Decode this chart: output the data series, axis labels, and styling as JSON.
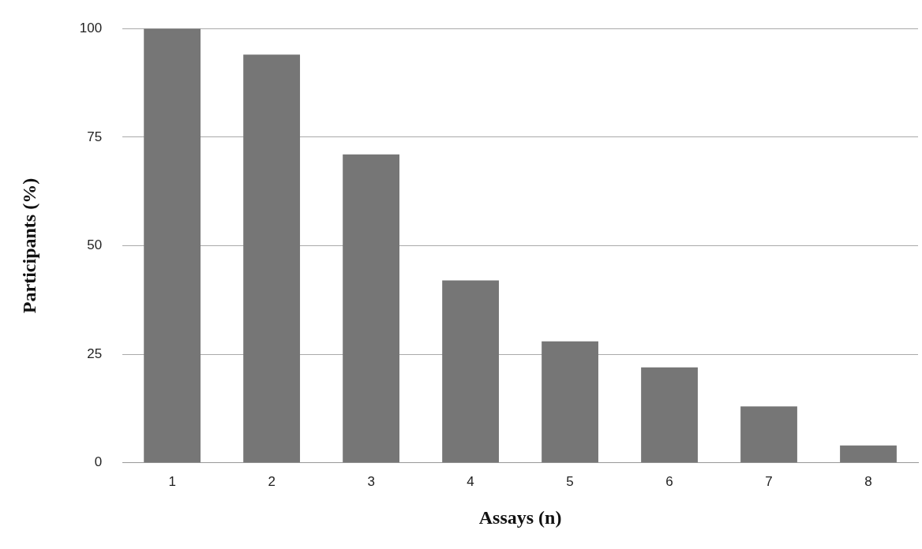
{
  "chart_data": {
    "type": "bar",
    "xlabel": "Assays (n)",
    "ylabel": "Participants (%)",
    "categories": [
      "1",
      "2",
      "3",
      "4",
      "5",
      "6",
      "7",
      "8"
    ],
    "values": [
      100,
      94,
      71,
      42,
      28,
      22,
      13,
      4
    ],
    "color": "#767676",
    "ylim": [
      0,
      100
    ],
    "yticks": [
      0,
      25,
      50,
      75,
      100
    ],
    "grid": "y"
  }
}
